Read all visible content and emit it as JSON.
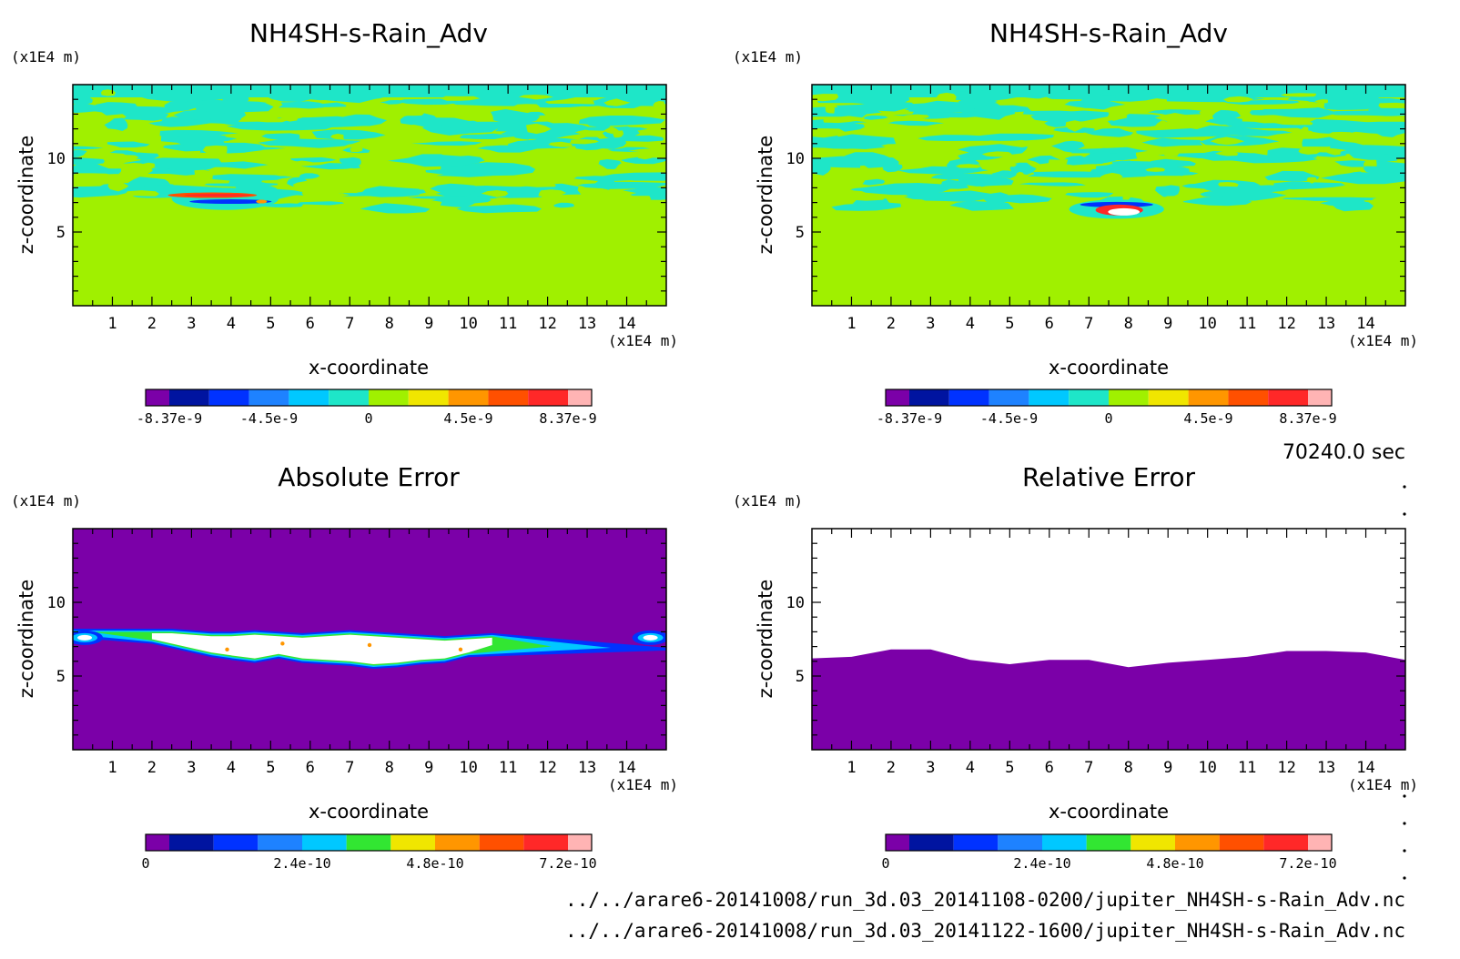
{
  "time_label": "70240.0 sec",
  "footer": {
    "file1": "../../arare6-20141008/run_3d.03_20141108-0200/jupiter_NH4SH-s-Rain_Adv.nc",
    "file2": "../../arare6-20141008/run_3d.03_20141122-1600/jupiter_NH4SH-s-Rain_Adv.nc"
  },
  "colors": {
    "purple": "#7b00a8",
    "navy": "#0014a0",
    "blue": "#0032ff",
    "skyblue": "#1e82ff",
    "cyan": "#00c8ff",
    "teal": "#1ee6c8",
    "lime": "#a0f000",
    "green": "#32e632",
    "yellow": "#f0e600",
    "orange": "#ff9600",
    "redorange": "#ff5000",
    "red": "#ff2828",
    "pink": "#ffb4b4",
    "white": "#ffffff"
  },
  "chart_data": [
    {
      "type": "heatmap",
      "title": "NH4SH-s-Rain_Adv",
      "xlabel": "x-coordinate",
      "ylabel": "z-coordinate",
      "x_unit": "(x1E4 m)",
      "y_unit": "(x1E4 m)",
      "xlim": [
        0,
        15
      ],
      "ylim": [
        0,
        15
      ],
      "xticks": [
        "1",
        "2",
        "3",
        "4",
        "5",
        "6",
        "7",
        "8",
        "9",
        "10",
        "11",
        "12",
        "13",
        "14"
      ],
      "yticks": [
        "5",
        "10"
      ],
      "colorbar": {
        "colors": [
          "#7b00a8",
          "#0014a0",
          "#0032ff",
          "#1e82ff",
          "#00c8ff",
          "#1ee6c8",
          "#a0f000",
          "#f0e600",
          "#ff9600",
          "#ff5000",
          "#ff2828",
          "#ffb4b4"
        ],
        "labels": [
          "-8.37e-9",
          "-4.5e-9",
          "0",
          "4.5e-9",
          "8.37e-9"
        ]
      },
      "features": {
        "background": "#a0f000",
        "turbulent_layer_z": [
          6.5,
          14.5
        ],
        "feature_x": [
          2.5,
          5.2
        ],
        "feature_z": [
          6.5,
          8.0
        ]
      }
    },
    {
      "type": "heatmap",
      "title": "NH4SH-s-Rain_Adv",
      "xlabel": "x-coordinate",
      "ylabel": "z-coordinate",
      "x_unit": "(x1E4 m)",
      "y_unit": "(x1E4 m)",
      "xlim": [
        0,
        15
      ],
      "ylim": [
        0,
        15
      ],
      "xticks": [
        "1",
        "2",
        "3",
        "4",
        "5",
        "6",
        "7",
        "8",
        "9",
        "10",
        "11",
        "12",
        "13",
        "14"
      ],
      "yticks": [
        "5",
        "10"
      ],
      "colorbar": {
        "colors": [
          "#7b00a8",
          "#0014a0",
          "#0032ff",
          "#1e82ff",
          "#00c8ff",
          "#1ee6c8",
          "#a0f000",
          "#f0e600",
          "#ff9600",
          "#ff5000",
          "#ff2828",
          "#ffb4b4"
        ],
        "labels": [
          "-8.37e-9",
          "-4.5e-9",
          "0",
          "4.5e-9",
          "8.37e-9"
        ]
      },
      "features": {
        "background": "#a0f000",
        "turbulent_layer_z": [
          6.5,
          14.5
        ],
        "feature_x": [
          6.5,
          8.9
        ],
        "feature_z": [
          5.9,
          7.2
        ]
      }
    },
    {
      "type": "heatmap",
      "title": "Absolute Error",
      "xlabel": "x-coordinate",
      "ylabel": "z-coordinate",
      "x_unit": "(x1E4 m)",
      "y_unit": "(x1E4 m)",
      "xlim": [
        0,
        15
      ],
      "ylim": [
        0,
        15
      ],
      "xticks": [
        "1",
        "2",
        "3",
        "4",
        "5",
        "6",
        "7",
        "8",
        "9",
        "10",
        "11",
        "12",
        "13",
        "14"
      ],
      "yticks": [
        "5",
        "10"
      ],
      "colorbar": {
        "colors": [
          "#7b00a8",
          "#0014a0",
          "#0032ff",
          "#1e82ff",
          "#00c8ff",
          "#32e632",
          "#f0e600",
          "#ff9600",
          "#ff5000",
          "#ff2828",
          "#ffb4b4"
        ],
        "labels": [
          "0",
          "2.4e-10",
          "4.8e-10",
          "7.2e-10"
        ]
      },
      "features": {
        "background": "#7b00a8",
        "error_band_x": [
          2.0,
          10.8
        ],
        "error_band_z": [
          5.8,
          7.9
        ]
      }
    },
    {
      "type": "heatmap",
      "title": "Relative Error",
      "xlabel": "x-coordinate",
      "ylabel": "z-coordinate",
      "x_unit": "(x1E4 m)",
      "y_unit": "(x1E4 m)",
      "xlim": [
        0,
        15
      ],
      "ylim": [
        0,
        15
      ],
      "xticks": [
        "1",
        "2",
        "3",
        "4",
        "5",
        "6",
        "7",
        "8",
        "9",
        "10",
        "11",
        "12",
        "13",
        "14"
      ],
      "yticks": [
        "5",
        "10"
      ],
      "colorbar": {
        "colors": [
          "#7b00a8",
          "#0014a0",
          "#0032ff",
          "#1e82ff",
          "#00c8ff",
          "#32e632",
          "#f0e600",
          "#ff9600",
          "#ff5000",
          "#ff2828",
          "#ffb4b4"
        ],
        "labels": [
          "0",
          "2.4e-10",
          "4.8e-10",
          "7.2e-10"
        ]
      },
      "features": {
        "background": "#7b00a8",
        "boundary_x": [
          0,
          1,
          2,
          3,
          4,
          5,
          6,
          7,
          8,
          9,
          10,
          11,
          12,
          13,
          14,
          15
        ],
        "boundary_z": [
          6.2,
          6.3,
          6.8,
          6.8,
          6.1,
          5.8,
          6.1,
          6.1,
          5.6,
          5.9,
          6.1,
          6.3,
          6.7,
          6.7,
          6.6,
          6.1
        ]
      }
    }
  ]
}
